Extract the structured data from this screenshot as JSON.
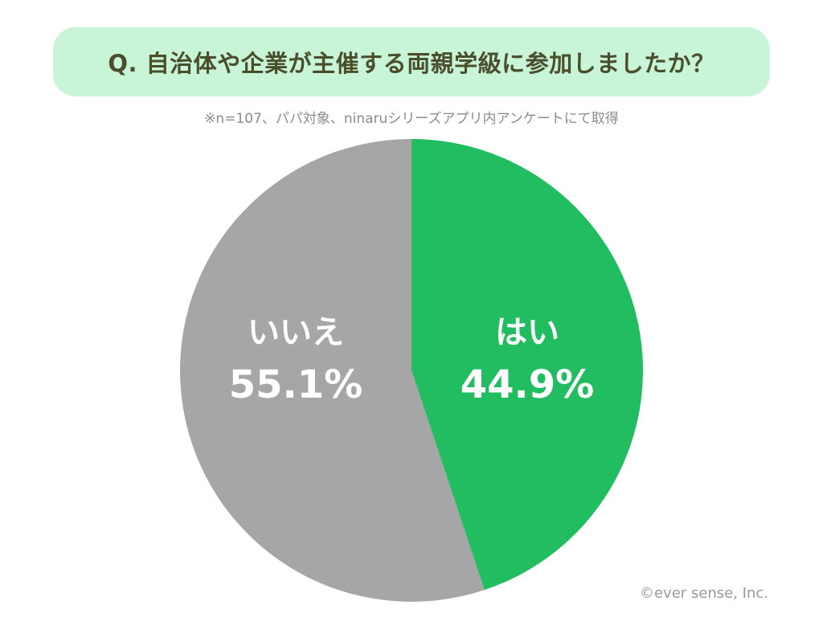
{
  "title": "Q. 自治体や企業が主催する両親学級に参加しましたか？",
  "note": "※n=107、パパ対象、ninaruシリーズアプリ内アンケートにて取得",
  "credit": "©ever sense, Inc.",
  "chart_data": {
    "type": "pie",
    "title": "Q. 自治体や企業が主催する両親学級に参加しましたか？",
    "slices": [
      {
        "label": "はい",
        "value": 44.9,
        "value_label": "44.9%",
        "color": "#21bd60"
      },
      {
        "label": "いいえ",
        "value": 55.1,
        "value_label": "55.1%",
        "color": "#a6a6a6"
      }
    ],
    "start": "12 o'clock",
    "direction": "clockwise",
    "labels_position": "inside"
  }
}
